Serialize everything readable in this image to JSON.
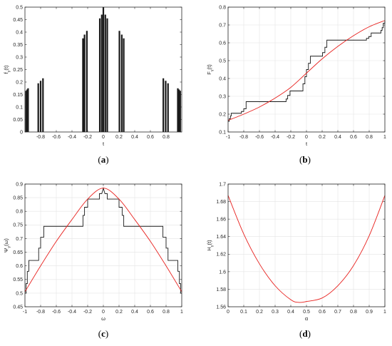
{
  "colors": {
    "black_series": "#1a1a1a",
    "red_series": "#e8211e",
    "grid": "#e4e4e4"
  },
  "chart_data": [
    {
      "id": "a",
      "type": "bar",
      "caption": "a",
      "xlabel": "t",
      "ylabel": "f_γ(t)",
      "xlim": [
        -1,
        1
      ],
      "ylim": [
        0,
        0.5
      ],
      "xticks": [
        -0.8,
        -0.6,
        -0.4,
        -0.2,
        0,
        0.2,
        0.4,
        0.6,
        0.8
      ],
      "yticks": [
        0,
        0.05,
        0.1,
        0.15,
        0.2,
        0.25,
        0.3,
        0.35,
        0.4,
        0.45,
        0.5
      ],
      "grid": false,
      "series": [
        {
          "type": "bar",
          "color": "black",
          "x": [
            -0.985,
            -0.972,
            -0.96,
            -0.83,
            -0.8,
            -0.77,
            -0.26,
            -0.24,
            -0.21,
            -0.045,
            -0.02,
            0,
            0.025,
            0.05,
            0.205,
            0.235,
            0.26,
            0.765,
            0.795,
            0.825,
            0.95,
            0.965,
            0.98
          ],
          "values": [
            0.165,
            0.17,
            0.175,
            0.195,
            0.205,
            0.215,
            0.375,
            0.39,
            0.405,
            0.455,
            0.47,
            0.5,
            0.47,
            0.455,
            0.405,
            0.39,
            0.375,
            0.215,
            0.205,
            0.195,
            0.175,
            0.17,
            0.165
          ]
        }
      ]
    },
    {
      "id": "b",
      "type": "line",
      "caption": "b",
      "xlabel": "t",
      "ylabel": "F_γ(t)",
      "xlim": [
        -1,
        1
      ],
      "ylim": [
        0.1,
        0.8
      ],
      "xticks": [
        -1,
        -0.8,
        -0.6,
        -0.4,
        -0.2,
        0,
        0.2,
        0.4,
        0.6,
        0.8,
        1
      ],
      "yticks": [
        0.1,
        0.2,
        0.3,
        0.4,
        0.5,
        0.6,
        0.7,
        0.8
      ],
      "grid": true,
      "series": [
        {
          "type": "step",
          "color": "black",
          "x": [
            -1,
            -0.985,
            -0.97,
            -0.96,
            -0.83,
            -0.8,
            -0.77,
            -0.26,
            -0.24,
            -0.21,
            -0.045,
            -0.02,
            0,
            0.025,
            0.05,
            0.205,
            0.235,
            0.26,
            0.765,
            0.795,
            0.825,
            0.95,
            0.965,
            0.98,
            1
          ],
          "values": [
            0.16,
            0.175,
            0.19,
            0.205,
            0.215,
            0.23,
            0.27,
            0.285,
            0.305,
            0.33,
            0.37,
            0.41,
            0.45,
            0.485,
            0.525,
            0.545,
            0.575,
            0.615,
            0.625,
            0.635,
            0.655,
            0.67,
            0.685,
            0.71,
            0.725
          ]
        },
        {
          "type": "line",
          "color": "red",
          "x": [
            -1,
            -0.8,
            -0.6,
            -0.4,
            -0.2,
            0,
            0.2,
            0.4,
            0.6,
            0.8,
            1
          ],
          "values": [
            0.165,
            0.2,
            0.24,
            0.29,
            0.35,
            0.43,
            0.51,
            0.58,
            0.64,
            0.69,
            0.725
          ]
        }
      ]
    },
    {
      "id": "c",
      "type": "line",
      "caption": "c",
      "xlabel": "ω",
      "ylabel": "Ψ_γ(ω)",
      "xlim": [
        -1,
        1
      ],
      "ylim": [
        0.45,
        0.9
      ],
      "xticks": [
        -1,
        -0.8,
        -0.6,
        -0.4,
        -0.2,
        0,
        0.2,
        0.4,
        0.6,
        0.8,
        1
      ],
      "yticks": [
        0.45,
        0.5,
        0.55,
        0.6,
        0.65,
        0.7,
        0.75,
        0.8,
        0.85,
        0.9
      ],
      "grid": true,
      "series": [
        {
          "type": "line",
          "color": "black",
          "x": [
            -1,
            -0.985,
            -0.985,
            -0.97,
            -0.97,
            -0.95,
            -0.95,
            -0.825,
            -0.825,
            -0.8,
            -0.8,
            -0.76,
            -0.76,
            -0.26,
            -0.26,
            -0.24,
            -0.24,
            -0.2,
            -0.2,
            -0.05,
            -0.05,
            -0.02,
            0,
            0.02,
            0.05,
            0.05,
            0.2,
            0.2,
            0.24,
            0.24,
            0.26,
            0.26,
            0.76,
            0.76,
            0.8,
            0.8,
            0.825,
            0.825,
            0.95,
            0.95,
            0.97,
            0.97,
            0.985,
            0.985,
            1
          ],
          "values": [
            0.5,
            0.5,
            0.535,
            0.535,
            0.58,
            0.58,
            0.62,
            0.62,
            0.665,
            0.665,
            0.705,
            0.705,
            0.745,
            0.745,
            0.785,
            0.785,
            0.815,
            0.815,
            0.845,
            0.845,
            0.865,
            0.865,
            0.885,
            0.865,
            0.865,
            0.845,
            0.845,
            0.815,
            0.815,
            0.785,
            0.785,
            0.745,
            0.745,
            0.705,
            0.705,
            0.665,
            0.665,
            0.62,
            0.62,
            0.58,
            0.58,
            0.535,
            0.535,
            0.5,
            0.5
          ]
        },
        {
          "type": "line",
          "color": "red",
          "x": [
            -1,
            -0.8,
            -0.6,
            -0.4,
            -0.2,
            0,
            0.2,
            0.4,
            0.6,
            0.8,
            1
          ],
          "values": [
            0.505,
            0.6,
            0.69,
            0.77,
            0.845,
            0.885,
            0.845,
            0.77,
            0.69,
            0.6,
            0.505
          ]
        }
      ]
    },
    {
      "id": "d",
      "type": "line",
      "caption": "d",
      "xlabel": "α",
      "ylabel": "H_γ(t)",
      "xlim": [
        0,
        1
      ],
      "ylim": [
        1.56,
        1.7
      ],
      "xticks": [
        0,
        0.1,
        0.2,
        0.3,
        0.4,
        0.5,
        0.6,
        0.7,
        0.8,
        0.9,
        1
      ],
      "yticks": [
        1.56,
        1.58,
        1.6,
        1.62,
        1.64,
        1.66,
        1.68,
        1.7
      ],
      "grid": true,
      "series": [
        {
          "type": "line",
          "color": "red",
          "x": [
            0,
            0.1,
            0.2,
            0.3,
            0.4,
            0.45,
            0.5,
            0.6,
            0.7,
            0.8,
            0.9,
            1
          ],
          "values": [
            1.687,
            1.643,
            1.609,
            1.584,
            1.568,
            1.565,
            1.566,
            1.57,
            1.584,
            1.607,
            1.641,
            1.687
          ]
        }
      ]
    }
  ]
}
